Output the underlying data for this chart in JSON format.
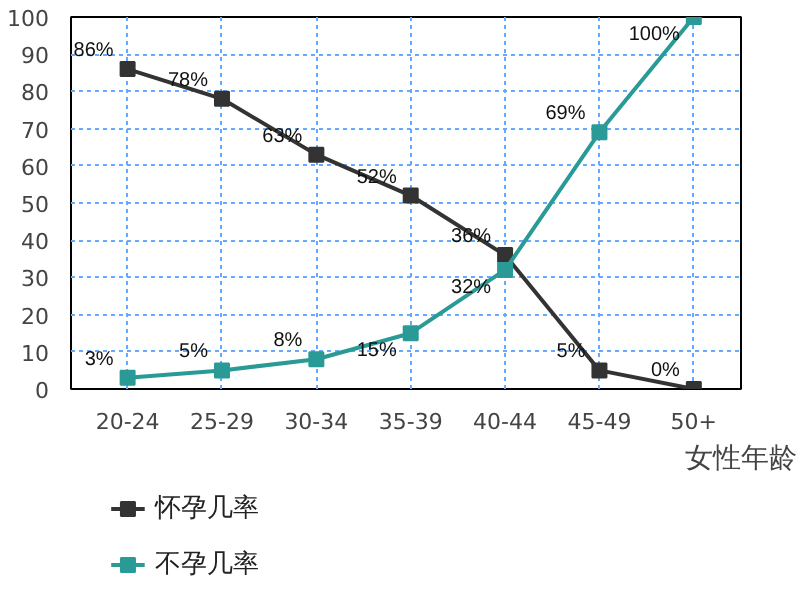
{
  "chart_data": {
    "type": "line",
    "xlabel": "女性年龄",
    "categories": [
      "20-24",
      "25-29",
      "30-34",
      "35-39",
      "40-44",
      "45-49",
      "50+"
    ],
    "series": [
      {
        "name": "怀孕几率",
        "color": "#333333",
        "values": [
          86,
          78,
          63,
          52,
          36,
          5,
          0
        ],
        "value_labels": [
          "86%",
          "78%",
          "63%",
          "52%",
          "36%",
          "5%",
          "0%"
        ]
      },
      {
        "name": "不孕几率",
        "color": "#2a9a96",
        "values": [
          3,
          5,
          8,
          15,
          32,
          69,
          100
        ],
        "value_labels": [
          "3%",
          "5%",
          "8%",
          "15%",
          "32%",
          "69%",
          "100%"
        ]
      }
    ],
    "ylim": [
      0,
      100
    ],
    "yticks": [
      0,
      10,
      20,
      30,
      40,
      50,
      60,
      70,
      80,
      90,
      100
    ],
    "grid": true,
    "legend": "bottom left",
    "marker": "square",
    "line_style": "solid"
  }
}
